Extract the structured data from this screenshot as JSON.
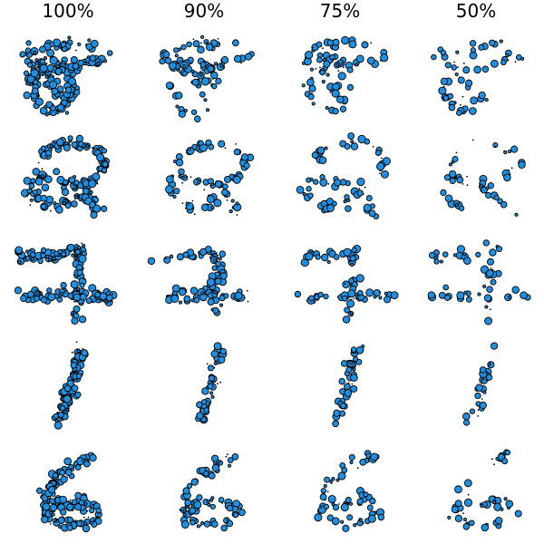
{
  "chart_data": {
    "type": "scatter",
    "columns": [
      "100%",
      "90%",
      "75%",
      "50%"
    ],
    "rows": 5,
    "marker_color": "#1f8fe0",
    "marker_edge": "#000000",
    "grid": false,
    "axes_visible": false
  }
}
